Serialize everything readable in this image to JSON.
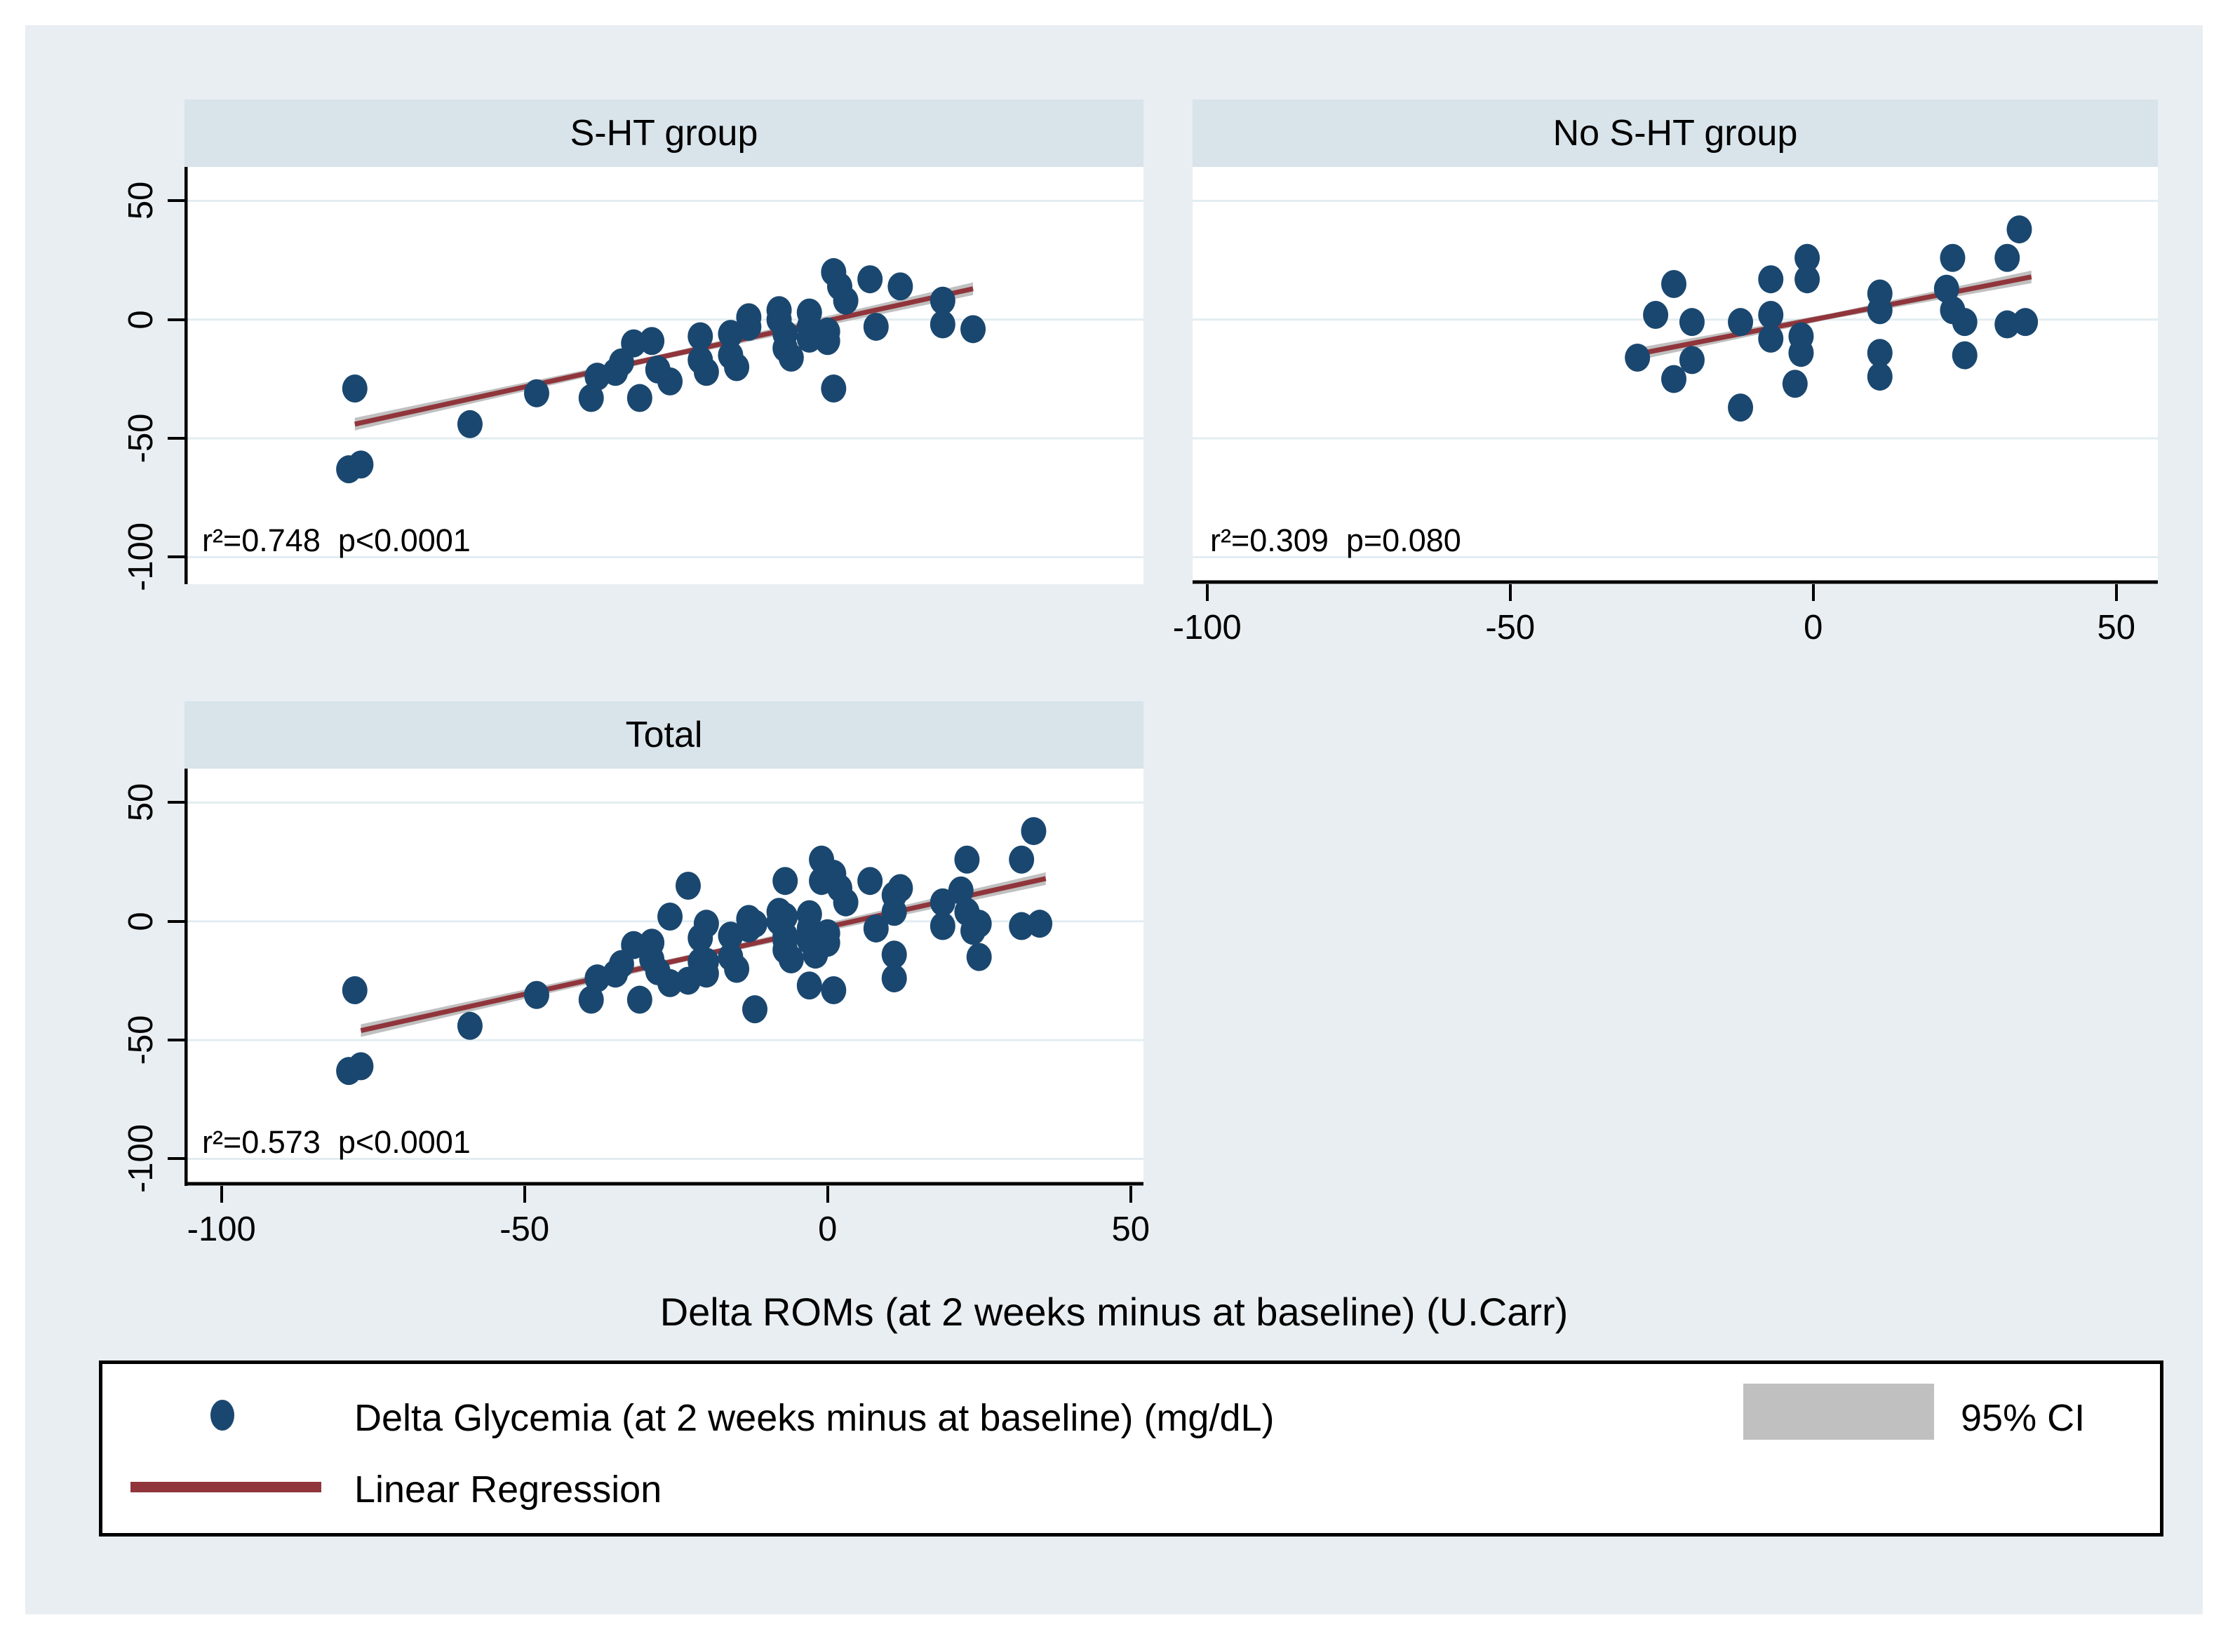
{
  "figure": {
    "xlabel": "Delta ROMs (at 2 weeks minus at baseline) (U.Carr)"
  },
  "chart_data": {
    "type": "scatter",
    "xlabel": "Delta ROMs (at 2 weeks minus at baseline) (U.Carr)",
    "x_ticks": [
      -100,
      -50,
      0,
      50
    ],
    "y_ticks": [
      50,
      0,
      -50,
      -100
    ],
    "x_range_data": [
      -110,
      57
    ],
    "y_range_data": [
      -111,
      64
    ],
    "grid": true,
    "legend": {
      "position": "bottom",
      "marker_label": "Delta Glycemia (at 2 weeks minus at baseline) (mg/dL)",
      "ci_label": "95% CI",
      "line_label": "Linear Regression"
    },
    "colors": {
      "background": "#ffffff",
      "figure_bg": "#e8eef2",
      "band_bg": "#d8e3ea",
      "plot_bg": "#ffffff",
      "grid": "#e2edf1",
      "axis": "#000000",
      "marker": "#1a476f",
      "regression": "#90353b",
      "ci": "#c0c0c0",
      "text": "#000000"
    },
    "panels": [
      {
        "id": "sht",
        "title": "S-HT group",
        "r2": 0.748,
        "p": "p<0.0001",
        "annotation": "r²=0.748  p<0.0001",
        "regression": {
          "x1": -78,
          "y1": -44,
          "x2": 24,
          "y2": 13
        },
        "points": [
          [
            -78,
            -29
          ],
          [
            -79,
            -63
          ],
          [
            -77,
            -61
          ],
          [
            -59,
            -44
          ],
          [
            -48,
            -31
          ],
          [
            -38,
            -24
          ],
          [
            -39,
            -33
          ],
          [
            -35,
            -22
          ],
          [
            -34,
            -18
          ],
          [
            -32,
            -10
          ],
          [
            -31,
            -33
          ],
          [
            -29,
            -9
          ],
          [
            -28,
            -21
          ],
          [
            -26,
            -26
          ],
          [
            -21,
            -7
          ],
          [
            -21,
            -17
          ],
          [
            -20,
            -22
          ],
          [
            -16,
            -6
          ],
          [
            -16,
            -15
          ],
          [
            -15,
            -20
          ],
          [
            -13,
            1
          ],
          [
            -13,
            -3
          ],
          [
            -8,
            4
          ],
          [
            -8,
            0
          ],
          [
            -7,
            -6
          ],
          [
            -7,
            -12
          ],
          [
            -6,
            -16
          ],
          [
            -3,
            3
          ],
          [
            -3,
            -3
          ],
          [
            -3,
            -8
          ],
          [
            0,
            -5
          ],
          [
            0,
            -9
          ],
          [
            1,
            -29
          ],
          [
            1,
            20
          ],
          [
            2,
            14
          ],
          [
            3,
            8
          ],
          [
            7,
            17
          ],
          [
            8,
            -3
          ],
          [
            12,
            14
          ],
          [
            19,
            8
          ],
          [
            19,
            -2
          ],
          [
            24,
            -4
          ]
        ]
      },
      {
        "id": "nosht",
        "title": "No S-HT group",
        "r2": 0.309,
        "p": "p=0.080",
        "annotation": "r²=0.309  p=0.080",
        "regression": {
          "x1": -30,
          "y1": -15,
          "x2": 36,
          "y2": 18
        },
        "points": [
          [
            -29,
            -16
          ],
          [
            -26,
            2
          ],
          [
            -23,
            15
          ],
          [
            -23,
            -25
          ],
          [
            -20,
            -1
          ],
          [
            -20,
            -17
          ],
          [
            -12,
            -1
          ],
          [
            -12,
            -37
          ],
          [
            -7,
            17
          ],
          [
            -7,
            2
          ],
          [
            -7,
            -8
          ],
          [
            -1,
            26
          ],
          [
            -1,
            17
          ],
          [
            -2,
            -7
          ],
          [
            -2,
            -14
          ],
          [
            -3,
            -27
          ],
          [
            11,
            11
          ],
          [
            11,
            4
          ],
          [
            11,
            -14
          ],
          [
            11,
            -24
          ],
          [
            23,
            26
          ],
          [
            22,
            13
          ],
          [
            23,
            4
          ],
          [
            25,
            -1
          ],
          [
            25,
            -15
          ],
          [
            32,
            26
          ],
          [
            32,
            -2
          ],
          [
            35,
            -1
          ],
          [
            34,
            38
          ]
        ]
      },
      {
        "id": "total",
        "title": "Total",
        "r2": 0.573,
        "p": "p<0.0001",
        "annotation": "r²=0.573  p<0.0001",
        "regression": {
          "x1": -77,
          "y1": -46,
          "x2": 36,
          "y2": 18
        },
        "points": [
          [
            -78,
            -29
          ],
          [
            -79,
            -63
          ],
          [
            -77,
            -61
          ],
          [
            -59,
            -44
          ],
          [
            -48,
            -31
          ],
          [
            -38,
            -24
          ],
          [
            -39,
            -33
          ],
          [
            -35,
            -22
          ],
          [
            -34,
            -18
          ],
          [
            -32,
            -10
          ],
          [
            -31,
            -33
          ],
          [
            -29,
            -9
          ],
          [
            -28,
            -21
          ],
          [
            -26,
            -26
          ],
          [
            -21,
            -7
          ],
          [
            -21,
            -17
          ],
          [
            -20,
            -22
          ],
          [
            -16,
            -6
          ],
          [
            -16,
            -15
          ],
          [
            -15,
            -20
          ],
          [
            -13,
            1
          ],
          [
            -13,
            -3
          ],
          [
            -8,
            4
          ],
          [
            -8,
            0
          ],
          [
            -7,
            -6
          ],
          [
            -7,
            -12
          ],
          [
            -6,
            -16
          ],
          [
            -3,
            3
          ],
          [
            -3,
            -3
          ],
          [
            -3,
            -8
          ],
          [
            0,
            -5
          ],
          [
            0,
            -9
          ],
          [
            1,
            -29
          ],
          [
            1,
            20
          ],
          [
            2,
            14
          ],
          [
            3,
            8
          ],
          [
            7,
            17
          ],
          [
            8,
            -3
          ],
          [
            12,
            14
          ],
          [
            19,
            8
          ],
          [
            19,
            -2
          ],
          [
            24,
            -4
          ],
          [
            -29,
            -16
          ],
          [
            -26,
            2
          ],
          [
            -23,
            15
          ],
          [
            -23,
            -25
          ],
          [
            -20,
            -1
          ],
          [
            -20,
            -17
          ],
          [
            -12,
            -1
          ],
          [
            -12,
            -37
          ],
          [
            -7,
            17
          ],
          [
            -7,
            2
          ],
          [
            -7,
            -8
          ],
          [
            -1,
            26
          ],
          [
            -1,
            17
          ],
          [
            -2,
            -7
          ],
          [
            -2,
            -14
          ],
          [
            -3,
            -27
          ],
          [
            11,
            11
          ],
          [
            11,
            4
          ],
          [
            11,
            -14
          ],
          [
            11,
            -24
          ],
          [
            23,
            26
          ],
          [
            22,
            13
          ],
          [
            23,
            4
          ],
          [
            25,
            -1
          ],
          [
            25,
            -15
          ],
          [
            32,
            26
          ],
          [
            32,
            -2
          ],
          [
            35,
            -1
          ],
          [
            34,
            38
          ]
        ]
      }
    ]
  }
}
